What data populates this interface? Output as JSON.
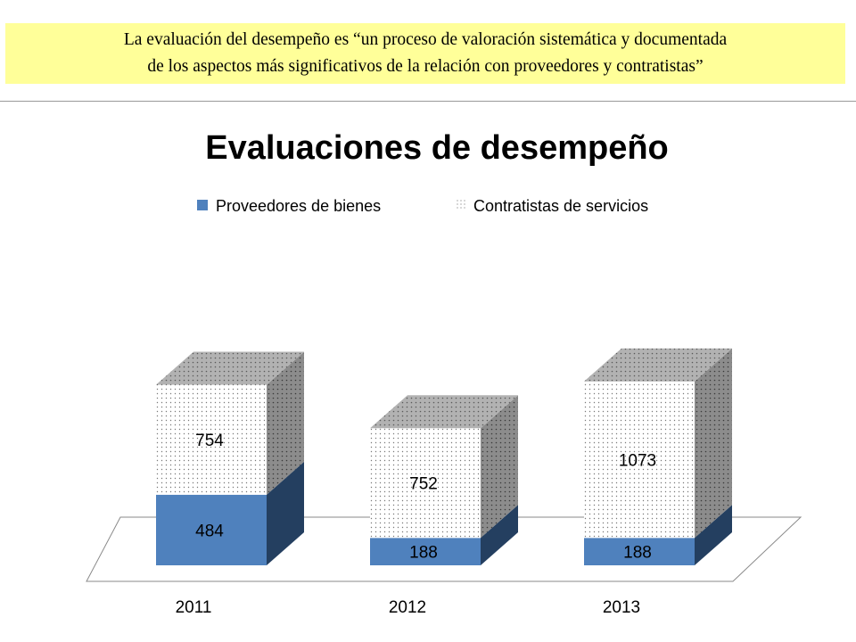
{
  "banner": {
    "line1": "La evaluación del desempeño es “un proceso de valoración sistemática y documentada",
    "line2": "de los aspectos más significativos de la relación con proveedores y contratistas”"
  },
  "chart_data": {
    "type": "bar",
    "stacked": true,
    "three_d": true,
    "title": "Evaluaciones de desempeño",
    "categories": [
      "2011",
      "2012",
      "2013"
    ],
    "series": [
      {
        "name": "Proveedores de bienes",
        "values": [
          484,
          188,
          188
        ],
        "color": "#4f81bd",
        "pattern": "solid"
      },
      {
        "name": "Contratistas de servicios",
        "values": [
          754,
          752,
          1073
        ],
        "color": "#ffffff",
        "pattern": "dotted"
      }
    ],
    "data_labels": true,
    "legend_position": "top",
    "grid": false
  },
  "colors": {
    "banner_background": "#ffff99",
    "side_dark_blue": "#243f60",
    "dotted_top": "#b0b0b0",
    "dotted_side": "#8a8a8a"
  }
}
